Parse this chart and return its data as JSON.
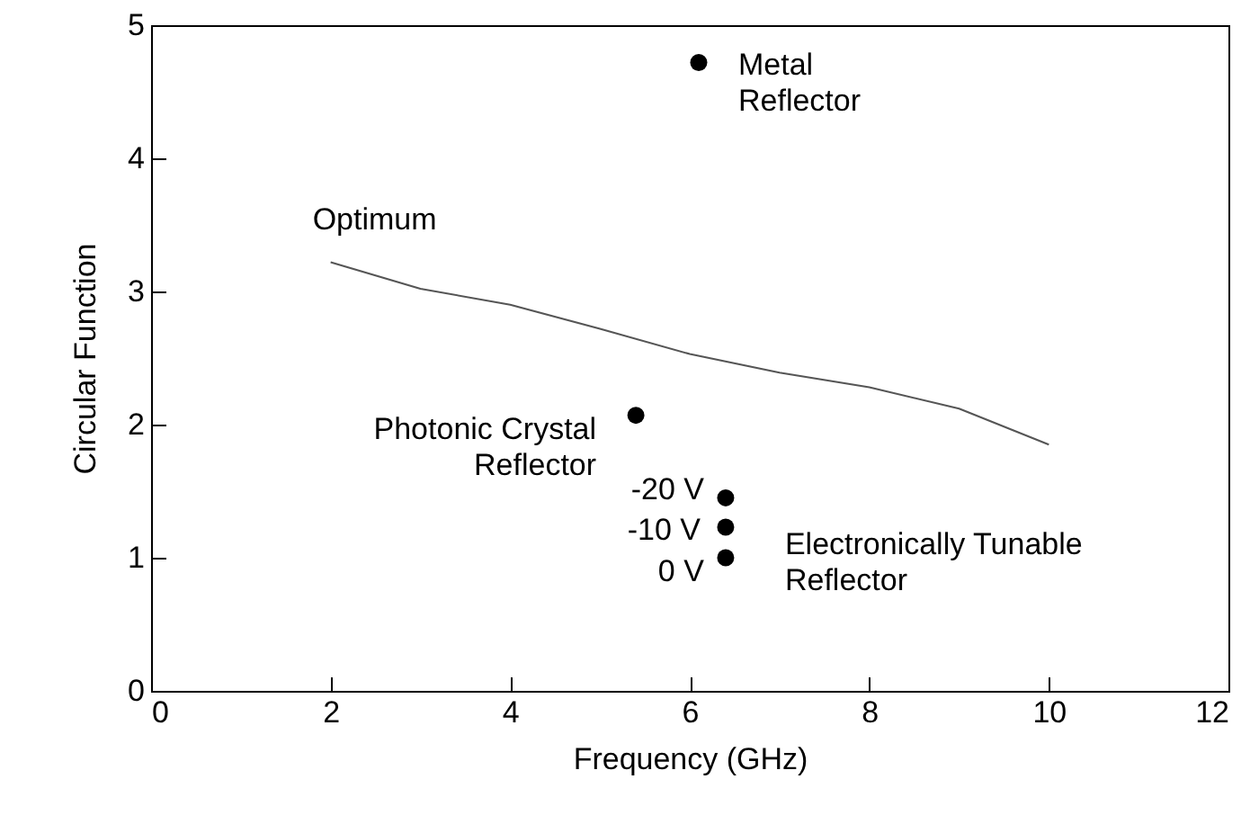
{
  "chart_data": {
    "type": "line",
    "xlabel": "Frequency (GHz)",
    "ylabel": "Circular Function",
    "xlim": [
      0,
      12
    ],
    "xticks": [
      0,
      2,
      4,
      6,
      8,
      10,
      12
    ],
    "ylim": [
      0,
      5
    ],
    "yticks": [
      0,
      1,
      2,
      3,
      4,
      5
    ],
    "grid": false,
    "series": [
      {
        "name": "Optimum",
        "color": "#555555",
        "line_style": "solid",
        "x": [
          2,
          3,
          4,
          5,
          6,
          7,
          8,
          9,
          10
        ],
        "values": [
          3.22,
          3.02,
          2.9,
          2.72,
          2.53,
          2.39,
          2.28,
          2.12,
          1.85
        ]
      },
      {
        "type": "scatter",
        "color": "#000000",
        "marker": "circle",
        "x": [
          6.1,
          5.4,
          6.4,
          6.4,
          6.4
        ],
        "values": [
          4.72,
          2.07,
          1.45,
          1.23,
          1.0
        ]
      }
    ],
    "annotations": [
      {
        "text": "Metal\nReflector",
        "x": 6.1,
        "y": 4.72
      },
      {
        "text": "Photonic Crystal\nReflector",
        "x": 5.4,
        "y": 2.07
      },
      {
        "text": "Electronically Tunable\nReflector",
        "x": 6.4,
        "y": 1.23
      },
      {
        "text": "-20 V",
        "x": 6.4,
        "y": 1.45
      },
      {
        "text": "-10 V",
        "x": 6.4,
        "y": 1.23
      },
      {
        "text": "0 V",
        "x": 6.4,
        "y": 1.0
      }
    ]
  }
}
